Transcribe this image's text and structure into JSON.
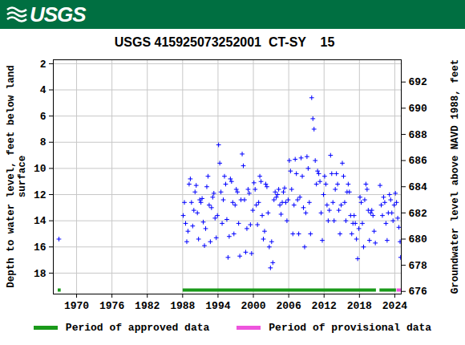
{
  "chart_data": {
    "type": "scatter",
    "header": "USGS",
    "title": "USGS 415925073252001  CT-SY    15",
    "ylabel": "Depth to water level, feet below land\nsurface",
    "y2label": "Groundwater level above NAVD 1988, feet",
    "color": "#0000ff",
    "marker": "plus",
    "grid": true,
    "legend": "bottom",
    "xlim": [
      1966.05,
      2025.1
    ],
    "xticks": [
      1970,
      1976,
      1982,
      1988,
      1994,
      2000,
      2006,
      2012,
      2018,
      2024
    ],
    "ylim": [
      1.7,
      19.6
    ],
    "yticks": [
      2,
      4,
      6,
      8,
      10,
      12,
      14,
      16,
      18
    ],
    "y2lim": [
      693.7,
      675.8
    ],
    "y2ticks": [
      676,
      678,
      680,
      682,
      684,
      686,
      688,
      690,
      692
    ],
    "x": [
      1967.0,
      1988.1,
      1988.3,
      1988.5,
      1988.7,
      1988.9,
      1989.1,
      1989.3,
      1989.5,
      1989.7,
      1989.9,
      1990.1,
      1990.3,
      1990.5,
      1990.7,
      1990.9,
      1991.1,
      1991.3,
      1991.5,
      1991.7,
      1991.9,
      1992.1,
      1992.3,
      1992.5,
      1992.7,
      1992.9,
      1993.1,
      1993.3,
      1993.5,
      1993.7,
      1993.9,
      1994.1,
      1994.3,
      1994.5,
      1994.7,
      1994.9,
      1995.1,
      1995.3,
      1995.5,
      1995.7,
      1995.9,
      1996.1,
      1996.3,
      1996.5,
      1996.7,
      1996.9,
      1997.1,
      1997.3,
      1997.5,
      1997.7,
      1997.9,
      1998.1,
      1998.3,
      1998.5,
      1998.7,
      1998.9,
      1999.1,
      1999.3,
      1999.5,
      1999.7,
      1999.9,
      2000.1,
      2000.3,
      2000.5,
      2000.7,
      2000.9,
      2001.1,
      2001.3,
      2001.5,
      2001.7,
      2001.9,
      2002.1,
      2002.3,
      2002.5,
      2002.7,
      2002.9,
      2003.1,
      2003.3,
      2003.5,
      2003.7,
      2003.9,
      2004.1,
      2004.3,
      2004.5,
      2004.7,
      2004.9,
      2005.1,
      2005.3,
      2005.5,
      2005.7,
      2005.9,
      2006.1,
      2006.3,
      2006.5,
      2006.7,
      2006.9,
      2007.1,
      2007.3,
      2007.5,
      2007.7,
      2007.9,
      2008.1,
      2008.3,
      2008.5,
      2008.7,
      2008.9,
      2009.1,
      2009.3,
      2009.5,
      2009.7,
      2009.9,
      2010.1,
      2010.3,
      2010.5,
      2010.7,
      2010.9,
      2011.1,
      2011.3,
      2011.5,
      2011.7,
      2011.9,
      2012.1,
      2012.3,
      2012.5,
      2012.7,
      2012.9,
      2013.1,
      2013.3,
      2013.5,
      2013.7,
      2013.9,
      2014.1,
      2014.3,
      2014.5,
      2014.7,
      2014.9,
      2015.1,
      2015.3,
      2015.5,
      2015.7,
      2015.9,
      2016.1,
      2016.3,
      2016.5,
      2016.7,
      2016.9,
      2017.1,
      2017.3,
      2017.5,
      2017.7,
      2017.9,
      2018.1,
      2018.3,
      2018.5,
      2018.7,
      2018.9,
      2019.1,
      2019.3,
      2019.5,
      2019.7,
      2019.9,
      2020.1,
      2020.3,
      2020.5,
      2020.7,
      2021.5,
      2021.7,
      2021.9,
      2022.1,
      2022.3,
      2022.5,
      2022.7,
      2022.9,
      2023.1,
      2023.3,
      2023.5,
      2023.7,
      2023.9,
      2024.1,
      2024.3,
      2024.5,
      2024.7,
      2024.9,
      2025.0
    ],
    "values": [
      15.4,
      13.6,
      12.6,
      14.2,
      15.6,
      14.8,
      11.2,
      10.8,
      12.6,
      14.4,
      13.2,
      11.8,
      11.3,
      13.4,
      15.4,
      12.4,
      12.6,
      12.3,
      14.1,
      15.9,
      14.6,
      11.4,
      10.6,
      12.8,
      15.6,
      13.0,
      12.2,
      11.9,
      13.8,
      15.3,
      13.6,
      8.2,
      9.6,
      11.8,
      14.2,
      12.4,
      10.6,
      11.2,
      13.9,
      16.8,
      15.2,
      10.8,
      11.0,
      12.6,
      15.0,
      12.8,
      11.6,
      11.8,
      14.2,
      16.7,
      12.4,
      8.9,
      9.8,
      12.4,
      16.4,
      14.6,
      11.6,
      11.9,
      14.3,
      16.5,
      13.2,
      11.1,
      11.6,
      12.8,
      14.3,
      12.6,
      10.6,
      11.0,
      13.6,
      15.4,
      14.8,
      11.2,
      11.4,
      13.4,
      16.0,
      17.6,
      15.6,
      17.2,
      12.4,
      11.8,
      12.2,
      12.0,
      11.6,
      12.8,
      13.5,
      12.6,
      11.8,
      11.5,
      12.6,
      14.0,
      12.4,
      9.4,
      10.2,
      11.6,
      15.0,
      12.8,
      9.3,
      10.4,
      12.4,
      15.0,
      12.2,
      9.2,
      10.6,
      13.0,
      16.0,
      13.4,
      9.1,
      10.0,
      12.6,
      15.0,
      4.6,
      6.2,
      7.0,
      9.4,
      11.2,
      10.2,
      10.4,
      11.0,
      13.4,
      15.5,
      12.0,
      10.6,
      11.2,
      12.8,
      14.0,
      13.2,
      9.0,
      10.4,
      12.6,
      14.0,
      11.6,
      10.4,
      11.2,
      13.2,
      15.0,
      12.8,
      9.6,
      10.6,
      12.6,
      14.0,
      11.8,
      11.2,
      11.8,
      13.6,
      15.0,
      14.2,
      13.6,
      14.2,
      15.4,
      16.9,
      14.6,
      12.2,
      12.6,
      14.2,
      16.0,
      12.4,
      11.2,
      11.6,
      13.2,
      15.5,
      13.4,
      13.2,
      13.6,
      14.8,
      15.7,
      11.3,
      12.8,
      13.6,
      12.2,
      12.6,
      14.2,
      15.5,
      13.4,
      12.0,
      12.4,
      13.4,
      14.0,
      12.8,
      11.9,
      12.6,
      13.8,
      14.5,
      15.6,
      16.8
    ],
    "periods": [
      {
        "name": "Period of approved data",
        "color": "#1a9a1a",
        "ranges": [
          [
            1966.8,
            1967.3
          ],
          [
            1988.0,
            2020.8
          ],
          [
            2021.4,
            2024.2
          ]
        ]
      },
      {
        "name": "Period of provisional data",
        "color": "#ee55dd",
        "ranges": [
          [
            2024.3,
            2025.1
          ]
        ]
      }
    ]
  }
}
